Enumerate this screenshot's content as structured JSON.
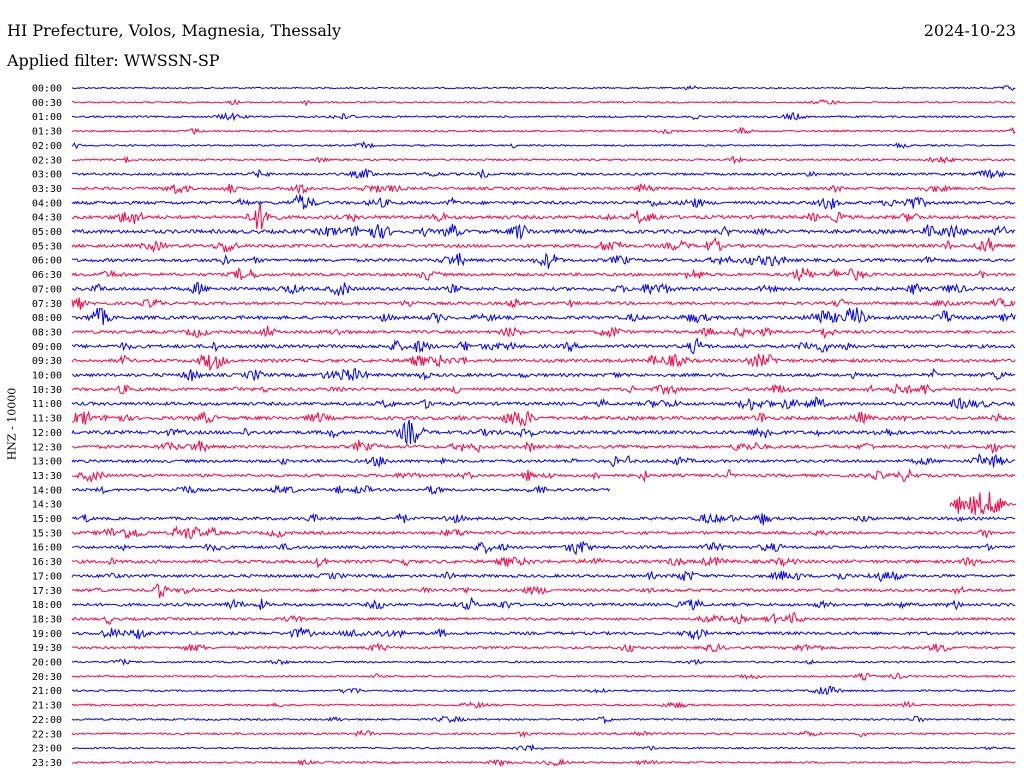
{
  "header": {
    "station": "HI Prefecture, Volos, Magnesia, Thessaly",
    "date": "2024-10-23",
    "filter": "Applied filter: WWSSN-SP"
  },
  "chart_data": {
    "type": "line",
    "title": "HI Prefecture, Volos, Magnesia, Thessaly",
    "subtitle": "Applied filter: WWSSN-SP",
    "date": "2024-10-23",
    "ylabel": "HNZ - 10000",
    "row_labels": [
      "00:00",
      "00:30",
      "01:00",
      "01:30",
      "02:00",
      "02:30",
      "03:00",
      "03:30",
      "04:00",
      "04:30",
      "05:00",
      "05:30",
      "06:00",
      "06:30",
      "07:00",
      "07:30",
      "08:00",
      "08:30",
      "09:00",
      "09:30",
      "10:00",
      "10:30",
      "11:00",
      "11:30",
      "12:00",
      "12:30",
      "13:00",
      "13:30",
      "14:00",
      "14:30",
      "15:00",
      "15:30",
      "16:00",
      "16:30",
      "17:00",
      "17:30",
      "18:00",
      "18:30",
      "19:00",
      "19:30",
      "20:00",
      "20:30",
      "21:00",
      "21:30",
      "22:00",
      "22:30",
      "23:00",
      "23:30"
    ],
    "colors": {
      "even": "#0000ff",
      "odd": "#ff0040"
    },
    "row_activity": [
      0.15,
      0.2,
      0.3,
      0.25,
      0.25,
      0.3,
      0.5,
      0.6,
      0.8,
      0.9,
      1.0,
      0.8,
      0.8,
      0.7,
      0.9,
      0.7,
      0.9,
      0.7,
      0.9,
      0.8,
      0.8,
      0.8,
      0.8,
      0.9,
      0.9,
      0.8,
      0.7,
      0.7,
      0.6,
      0.7,
      0.7,
      0.7,
      0.7,
      0.8,
      0.7,
      0.7,
      0.7,
      0.6,
      0.7,
      0.5,
      0.25,
      0.3,
      0.25,
      0.3,
      0.3,
      0.35,
      0.2,
      0.3
    ],
    "partial_rows": [
      {
        "label": "14:00",
        "end_fraction": 0.57
      },
      {
        "label": "14:30",
        "start_fraction": 0.93
      }
    ],
    "grid": false
  }
}
